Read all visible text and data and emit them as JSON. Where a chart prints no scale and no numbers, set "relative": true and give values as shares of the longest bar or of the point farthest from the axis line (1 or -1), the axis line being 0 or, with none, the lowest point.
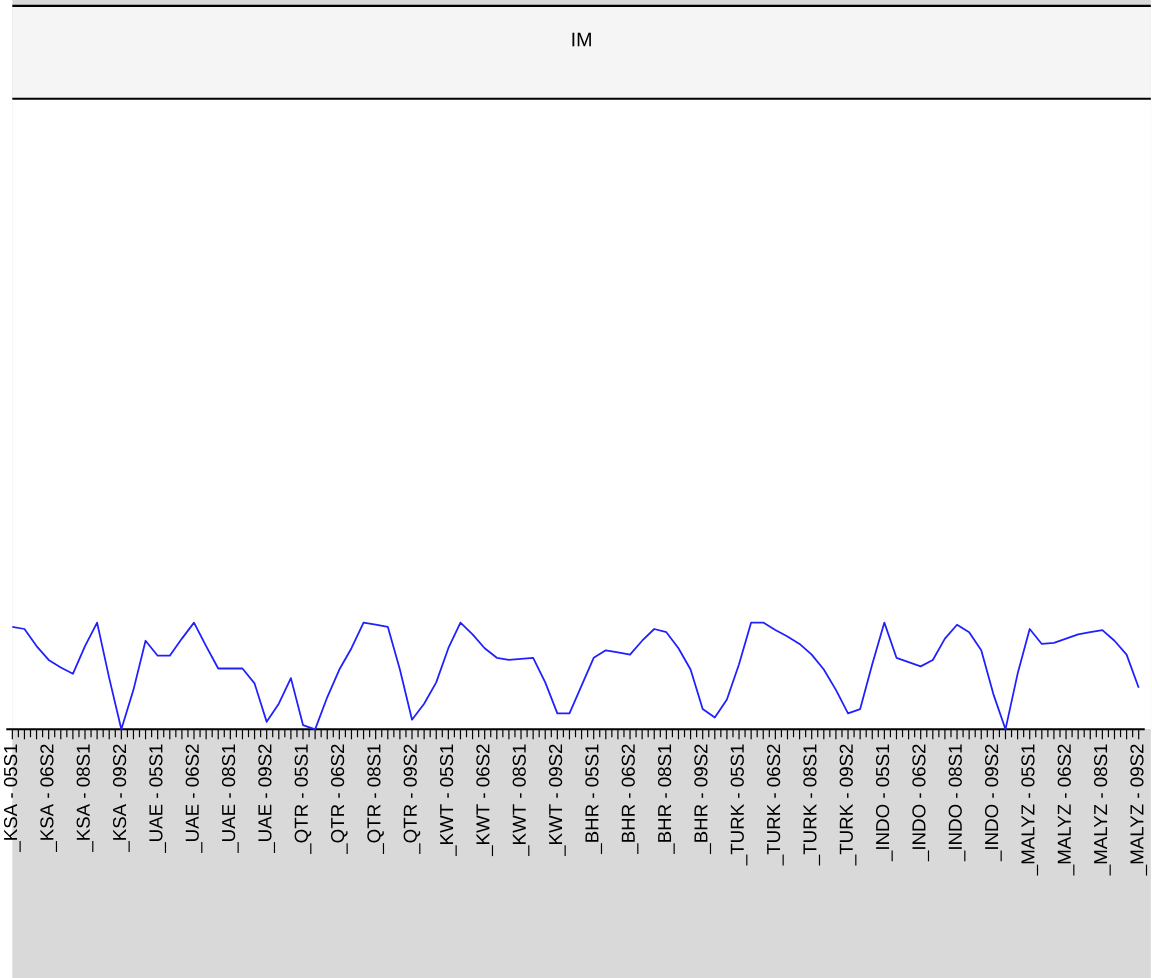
{
  "chart_data": {
    "type": "line",
    "title": "IM",
    "relative": true,
    "categories": [
      "_KSA - 05S1",
      null,
      null,
      "_KSA - 06S2",
      null,
      null,
      "_KSA - 08S1",
      null,
      null,
      "_KSA - 09S2",
      null,
      null,
      "_UAE - 05S1",
      null,
      null,
      "_UAE - 06S2",
      null,
      null,
      "_UAE - 08S1",
      null,
      null,
      "_UAE - 09S2",
      null,
      null,
      "_QTR - 05S1",
      null,
      null,
      "_QTR - 06S2",
      null,
      null,
      "_QTR - 08S1",
      null,
      null,
      "_QTR - 09S2",
      null,
      null,
      "_KWT - 05S1",
      null,
      null,
      "_KWT - 06S2",
      null,
      null,
      "_KWT - 08S1",
      null,
      null,
      "_KWT - 09S2",
      null,
      null,
      "_BHR - 05S1",
      null,
      null,
      "_BHR - 06S2",
      null,
      null,
      "_BHR - 08S1",
      null,
      null,
      "_BHR - 09S2",
      null,
      null,
      "_TURK - 05S1",
      null,
      null,
      "_TURK - 06S2",
      null,
      null,
      "_TURK - 08S1",
      null,
      null,
      "_TURK - 09S2",
      null,
      null,
      "_INDO - 05S1",
      null,
      null,
      "_INDO - 06S2",
      null,
      null,
      "_INDO - 08S1",
      null,
      null,
      "_INDO - 09S2",
      null,
      null,
      "_MALYZ - 05S1",
      null,
      null,
      "_MALYZ - 06S2",
      null,
      null,
      "_MALYZ - 08S1",
      null,
      null,
      "_MALYZ - 09S2"
    ],
    "series": [
      {
        "color": "#2020ff",
        "values": [
          0.96,
          0.94,
          0.78,
          0.65,
          0.58,
          0.52,
          0.78,
          1.0,
          0.48,
          0,
          0.37,
          0.83,
          0.69,
          0.69,
          0.85,
          1.0,
          0.78,
          0.57,
          0.57,
          0.57,
          0.43,
          0.07,
          0.24,
          0.48,
          0.04,
          0,
          0.3,
          0.56,
          0.76,
          1.0,
          0.98,
          0.96,
          0.56,
          0.09,
          0.24,
          0.44,
          0.76,
          1.0,
          0.89,
          0.76,
          0.67,
          0.65,
          0.66,
          0.67,
          0.44,
          0.15,
          0.15,
          0.41,
          0.67,
          0.74,
          0.72,
          0.7,
          0.83,
          0.94,
          0.91,
          0.76,
          0.56,
          0.19,
          0.11,
          0.28,
          0.61,
          1.0,
          1.0,
          0.93,
          0.87,
          0.8,
          0.7,
          0.56,
          0.37,
          0.15,
          0.19,
          0.61,
          1.0,
          0.67,
          0.63,
          0.59,
          0.65,
          0.85,
          0.98,
          0.91,
          0.74,
          0.33,
          0,
          0.52,
          0.94,
          0.8,
          0.81,
          0.85,
          0.89,
          0.91,
          0.93,
          0.83,
          0.7,
          0.39
        ]
      }
    ]
  }
}
